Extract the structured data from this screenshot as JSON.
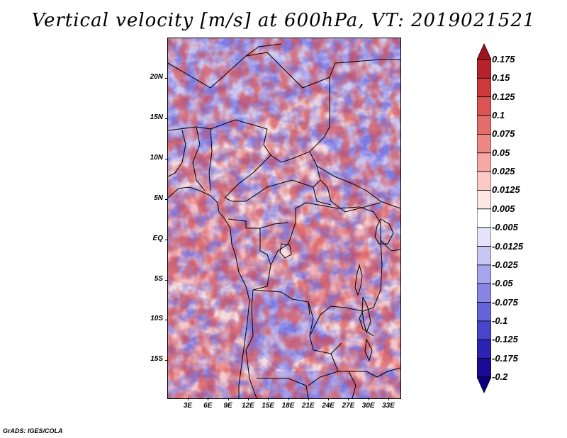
{
  "title": "Vertical velocity [m/s] at 600hPa, VT: 2019021521",
  "footer": "GrADS: IGES/COLA",
  "map": {
    "variable": "Vertical velocity",
    "units": "m/s",
    "level": "600hPa",
    "valid_time": "2019021521",
    "lat_labels": [
      "20N",
      "15N",
      "10N",
      "5N",
      "EQ",
      "5S",
      "10S",
      "15S"
    ],
    "lon_labels": [
      "3E",
      "6E",
      "9E",
      "12E",
      "15E",
      "18E",
      "21E",
      "24E",
      "27E",
      "30E",
      "33E"
    ]
  },
  "colorbar": {
    "labels": [
      "0.175",
      "0.15",
      "0.125",
      "0.1",
      "0.075",
      "0.05",
      "0.025",
      "0.0125",
      "0.005",
      "-0.005",
      "-0.0125",
      "-0.025",
      "-0.05",
      "-0.075",
      "-0.1",
      "-0.125",
      "-0.175",
      "-0.2"
    ],
    "colors": [
      "#a0141e",
      "#b8222a",
      "#cc3a3c",
      "#dc5452",
      "#e66e6a",
      "#ee8884",
      "#f5a8a4",
      "#fbcac7",
      "#fde6e4",
      "#ffffff",
      "#e6e4fb",
      "#c8c6f3",
      "#a6a4ec",
      "#8886e4",
      "#6664da",
      "#4844cc",
      "#2c22b4",
      "#1a0a96",
      "#0c0080"
    ]
  },
  "colors": {
    "positive": "#e06a6a",
    "negative": "#6a6ae0",
    "border": "#000000"
  }
}
